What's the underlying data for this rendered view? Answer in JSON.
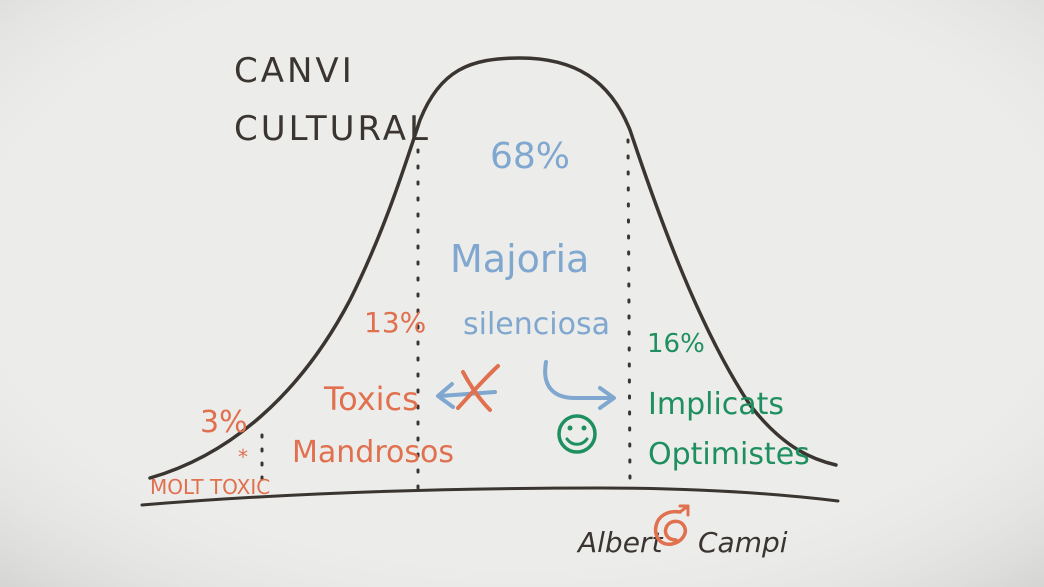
{
  "colors": {
    "background": "#ececea",
    "ink_dark": "#3a3530",
    "ink_orange": "#e0704e",
    "ink_blue": "#7fa7cf",
    "ink_green": "#1e8f5e"
  },
  "title": {
    "line1": "CANVI",
    "line2": "CULTURAL"
  },
  "groups": {
    "very_toxic": {
      "pct": "3%",
      "label": "MOLT TOXIC",
      "marker": "*"
    },
    "toxic": {
      "pct": "13%",
      "label1": "Toxics",
      "label2": "Mandrosos"
    },
    "majority": {
      "pct": "68%",
      "label1": "Majoria",
      "label2": "silenciosa"
    },
    "involved": {
      "pct": "16%",
      "label1": "Implicats",
      "label2": "Optimistes"
    }
  },
  "icons": {
    "crossed_arrow": "crossed-left-arrow-icon",
    "curved_arrow": "curved-right-arrow-icon",
    "smiley": "smiley-face-icon"
  },
  "signature": {
    "first": "Albert",
    "last": "Campi"
  }
}
